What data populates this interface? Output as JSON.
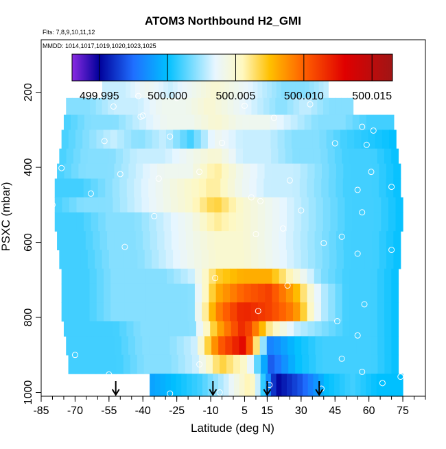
{
  "figure": {
    "title": "ATOM3 Northbound H2_GMI",
    "flights_note": "Flts: 7,8,9,10,11,12",
    "dates_note": "MMDD: 1014,1017,1019,1020,1023,1025"
  },
  "colorbar": {
    "ticks": [
      "499.995",
      "500.000",
      "500.005",
      "500.010",
      "500.015"
    ],
    "values": [
      499.995,
      500.0,
      500.005,
      500.01,
      500.015
    ],
    "range": [
      499.993,
      500.0165
    ],
    "stops": [
      {
        "v": 499.993,
        "c": "#8a2be2"
      },
      {
        "v": 499.995,
        "c": "#00009a"
      },
      {
        "v": 499.9975,
        "c": "#1f6fff"
      },
      {
        "v": 500.0,
        "c": "#00c0ff"
      },
      {
        "v": 500.0035,
        "c": "#e8f6ff"
      },
      {
        "v": 500.0055,
        "c": "#fff8c0"
      },
      {
        "v": 500.0075,
        "c": "#ffc000"
      },
      {
        "v": 500.01,
        "c": "#ff6000"
      },
      {
        "v": 500.013,
        "c": "#e00000"
      },
      {
        "v": 500.0165,
        "c": "#a01515"
      }
    ]
  },
  "chart_data": {
    "type": "heatmap",
    "title": "ATOM3 Northbound H2_GMI",
    "xlabel": "Latitude (deg N)",
    "ylabel": "PSXC (mbar)",
    "xlim": [
      -85,
      85
    ],
    "ylim": [
      1010,
      60
    ],
    "y_inverted": true,
    "xticks": [
      "-85",
      "-70",
      "-55",
      "-40",
      "-25",
      "-10",
      "5",
      "15",
      "30",
      "45",
      "60",
      "75"
    ],
    "xtick_values": [
      -85,
      -70,
      -55,
      -40,
      -25,
      -10,
      5,
      15,
      30,
      45,
      60,
      75
    ],
    "yticks": [
      "200",
      "400",
      "600",
      "800",
      "1000"
    ],
    "ytick_values": [
      200,
      400,
      600,
      800,
      1000
    ],
    "x_minor_step": 5,
    "grid": false,
    "legend": "colorbar top",
    "pressure_layers": [
      {
        "p": [
          165,
          215
        ],
        "lat": [
          -58,
          42
        ],
        "v": [
          500.003,
          500.003,
          500.004,
          500.003,
          500.004,
          500.005,
          500.004,
          500.003,
          500.002,
          500.002,
          500.003
        ]
      },
      {
        "p": [
          215,
          260
        ],
        "lat": [
          -74,
          53
        ],
        "v": [
          500.002,
          500.002,
          500.003,
          500.003,
          500.004,
          500.004,
          500.005,
          500.004,
          500.003,
          500.002,
          500.003,
          500.002,
          500.002
        ]
      },
      {
        "p": [
          260,
          300
        ],
        "lat": [
          -75,
          71
        ],
        "v": [
          500.001,
          500.002,
          500.002,
          500.003,
          500.004,
          500.004,
          500.005,
          500.004,
          500.004,
          500.003,
          500.002,
          500.002,
          500.001,
          500.001
        ]
      },
      {
        "p": [
          300,
          350
        ],
        "lat": [
          -76,
          72
        ],
        "v": [
          500.001,
          500.002,
          500.003,
          500.002,
          500.003,
          500.001,
          500.004,
          500.003,
          500.003,
          500.002,
          500.002,
          500.001,
          500.0005,
          500.0
        ]
      },
      {
        "p": [
          350,
          390
        ],
        "lat": [
          -77,
          73
        ],
        "v": [
          500.001,
          500.002,
          500.002,
          500.003,
          500.003,
          500.004,
          500.005,
          500.003,
          500.003,
          500.002,
          500.002,
          500.001,
          500.001,
          500.0
        ]
      },
      {
        "p": [
          390,
          430
        ],
        "lat": [
          -78,
          74
        ],
        "v": [
          500.001,
          500.002,
          500.002,
          500.003,
          500.004,
          500.004,
          500.006,
          500.004,
          500.003,
          500.003,
          500.002,
          500.001,
          500.001,
          500.0
        ]
      },
      {
        "p": [
          430,
          480
        ],
        "lat": [
          -79,
          74
        ],
        "v": [
          500.001,
          500.001,
          500.002,
          500.003,
          500.004,
          500.005,
          500.006,
          500.004,
          500.003,
          500.003,
          500.002,
          500.001,
          500.001,
          500.0
        ]
      },
      {
        "p": [
          480,
          520
        ],
        "lat": [
          -79,
          75
        ],
        "v": [
          500.001,
          500.002,
          500.002,
          500.003,
          500.004,
          500.005,
          500.007,
          500.005,
          500.004,
          500.003,
          500.002,
          500.001,
          500.001,
          500.0
        ]
      },
      {
        "p": [
          520,
          570
        ],
        "lat": [
          -79,
          75
        ],
        "v": [
          500.001,
          500.001,
          500.002,
          500.002,
          500.003,
          500.004,
          500.006,
          500.005,
          500.004,
          500.003,
          500.002,
          500.001,
          500.001,
          500.0
        ]
      },
      {
        "p": [
          570,
          620
        ],
        "lat": [
          -78,
          74
        ],
        "v": [
          500.001,
          500.001,
          500.002,
          500.002,
          500.003,
          500.004,
          500.005,
          500.005,
          500.004,
          500.003,
          500.002,
          500.001,
          500.001,
          500.0
        ]
      },
      {
        "p": [
          620,
          670
        ],
        "lat": [
          -77,
          74
        ],
        "v": [
          500.001,
          500.001,
          500.002,
          500.002,
          500.003,
          500.004,
          500.005,
          500.005,
          500.004,
          500.003,
          500.002,
          500.001,
          500.001,
          500.0
        ]
      },
      {
        "p": [
          670,
          710
        ],
        "lat": [
          -76,
          73
        ],
        "v": [
          500.001,
          500.001,
          500.002,
          500.002,
          500.002,
          500.003,
          500.007,
          500.008,
          500.008,
          500.005,
          500.002,
          500.001,
          500.001,
          500.0
        ]
      },
      {
        "p": [
          710,
          760
        ],
        "lat": [
          -76,
          73
        ],
        "v": [
          500.001,
          500.001,
          500.002,
          500.002,
          500.002,
          500.002,
          500.008,
          500.01,
          500.011,
          500.008,
          500.003,
          500.001,
          500.001,
          500.0
        ]
      },
      {
        "p": [
          760,
          810
        ],
        "lat": [
          -76,
          73
        ],
        "v": [
          500.001,
          500.001,
          500.002,
          500.002,
          500.002,
          500.002,
          500.009,
          500.012,
          500.011,
          500.009,
          500.003,
          500.001,
          500.001,
          500.0
        ]
      },
      {
        "p": [
          810,
          850
        ],
        "lat": [
          -75,
          73
        ],
        "v": [
          500.001,
          500.001,
          500.001,
          500.002,
          500.002,
          500.002,
          500.008,
          500.012,
          500.006,
          500.003,
          500.002,
          500.001,
          500.001,
          500.0
        ]
      },
      {
        "p": [
          850,
          900
        ],
        "lat": [
          -74,
          73
        ],
        "v": [
          500.001,
          500.001,
          500.001,
          500.002,
          500.002,
          500.003,
          500.01,
          500.013,
          499.998,
          500.0,
          500.001,
          500.001,
          500.001,
          500.0
        ]
      },
      {
        "p": [
          900,
          950
        ],
        "lat": [
          -73,
          73
        ],
        "v": [
          500.001,
          500.001,
          500.001,
          500.002,
          500.002,
          500.003,
          500.007,
          500.005,
          499.997,
          500.0,
          500.001,
          500.001,
          500.001,
          500.0
        ]
      },
      {
        "p": [
          950,
          1010
        ],
        "lat": [
          -37,
          75
        ],
        "v": [
          499.999,
          500.0,
          500.001,
          500.003,
          500.006,
          499.995,
          499.997,
          500.0,
          500.001,
          500.0,
          500.0
        ]
      }
    ],
    "samples": [
      {
        "lat": -42,
        "p": 210
      },
      {
        "lat": -36,
        "p": 208
      },
      {
        "lat": -22,
        "p": 207
      },
      {
        "lat": -53,
        "p": 238
      },
      {
        "lat": -25,
        "p": 215
      },
      {
        "lat": 5,
        "p": 236
      },
      {
        "lat": 34,
        "p": 232
      },
      {
        "lat": -40,
        "p": 262
      },
      {
        "lat": -41,
        "p": 265
      },
      {
        "lat": 18,
        "p": 268
      },
      {
        "lat": 57,
        "p": 292
      },
      {
        "lat": 73,
        "p": 270
      },
      {
        "lat": 62,
        "p": 302
      },
      {
        "lat": -57,
        "p": 330
      },
      {
        "lat": -28,
        "p": 318
      },
      {
        "lat": -5,
        "p": 335
      },
      {
        "lat": 45,
        "p": 336
      },
      {
        "lat": 59,
        "p": 340
      },
      {
        "lat": -76,
        "p": 402
      },
      {
        "lat": -50,
        "p": 418
      },
      {
        "lat": -33,
        "p": 430
      },
      {
        "lat": -15,
        "p": 412
      },
      {
        "lat": 25,
        "p": 435
      },
      {
        "lat": 61,
        "p": 412
      },
      {
        "lat": 70,
        "p": 452
      },
      {
        "lat": -63,
        "p": 470
      },
      {
        "lat": -80,
        "p": 500
      },
      {
        "lat": 8,
        "p": 480
      },
      {
        "lat": 12,
        "p": 490
      },
      {
        "lat": 55,
        "p": 460
      },
      {
        "lat": -35,
        "p": 530
      },
      {
        "lat": 30,
        "p": 515
      },
      {
        "lat": 57,
        "p": 520
      },
      {
        "lat": 10,
        "p": 578
      },
      {
        "lat": 22,
        "p": 563
      },
      {
        "lat": 48,
        "p": 585
      },
      {
        "lat": -48,
        "p": 612
      },
      {
        "lat": 40,
        "p": 602
      },
      {
        "lat": 55,
        "p": 630
      },
      {
        "lat": 70,
        "p": 620
      },
      {
        "lat": -8,
        "p": 695
      },
      {
        "lat": 24,
        "p": 715
      },
      {
        "lat": 11,
        "p": 783
      },
      {
        "lat": 58,
        "p": 765
      },
      {
        "lat": 46,
        "p": 810
      },
      {
        "lat": 55,
        "p": 848
      },
      {
        "lat": -70,
        "p": 900
      },
      {
        "lat": -15,
        "p": 925
      },
      {
        "lat": 48,
        "p": 910
      },
      {
        "lat": -55,
        "p": 952
      },
      {
        "lat": 16,
        "p": 980
      },
      {
        "lat": 39,
        "p": 990
      },
      {
        "lat": 57,
        "p": 945
      },
      {
        "lat": 66,
        "p": 975
      },
      {
        "lat": 74,
        "p": 958
      },
      {
        "lat": -28,
        "p": 1003
      },
      {
        "lat": -6,
        "p": 1000
      }
    ],
    "arrows_lat": [
      -52,
      -9,
      15,
      38
    ]
  }
}
